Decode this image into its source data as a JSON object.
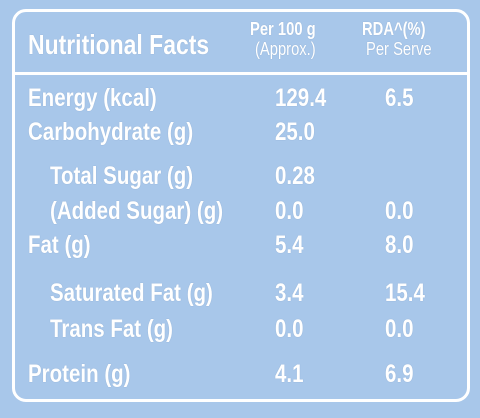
{
  "header": {
    "title": "Nutritional Facts",
    "col1": [
      "Per 100 g",
      "(Approx.)"
    ],
    "col2": [
      "RDA^(%)",
      "Per Serve"
    ]
  },
  "table": {
    "rows": [
      [
        "Energy (kcal)",
        "129.4",
        "6.5"
      ],
      [
        "Carbohydrate (g)",
        "25.0",
        null
      ],
      [
        "Total Sugar (g)",
        "0.28",
        null
      ],
      [
        "(Added Sugar) (g)",
        "0.0",
        "0.0"
      ],
      [
        "Fat (g)",
        "5.4",
        "8.0"
      ],
      [
        "Saturated Fat (g)",
        "3.4",
        "15.4"
      ],
      [
        "Trans Fat (g)",
        "0.0",
        "0.0"
      ],
      [
        "Protein (g)",
        "4.1",
        "6.9"
      ]
    ]
  }
}
